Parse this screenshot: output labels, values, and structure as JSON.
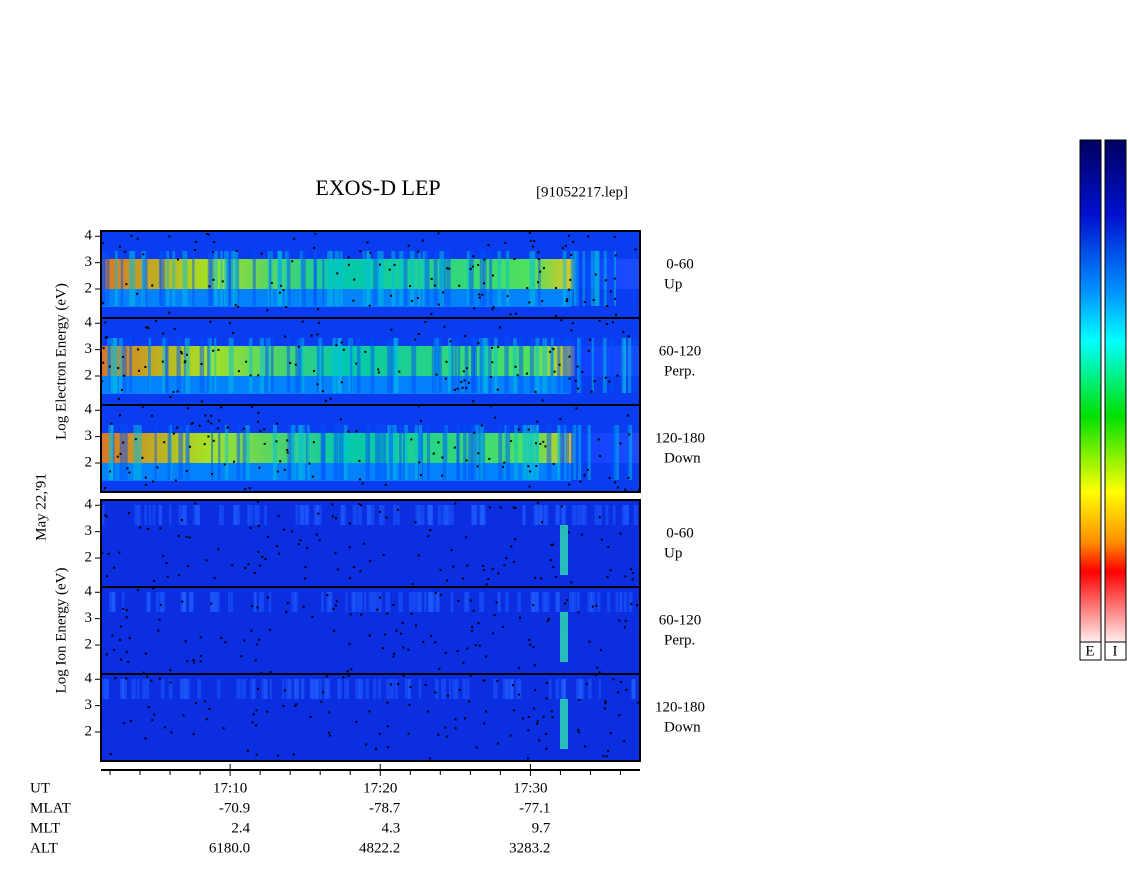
{
  "chart_data": {
    "type": "spectrogram",
    "title": "EXOS-D LEP",
    "file_label": "[91052217.lep]",
    "date_label": "May 22,'91",
    "groups": [
      {
        "ylabel": "Log Electron Energy (eV)",
        "panels": [
          {
            "label": [
              "0-60",
              "Up"
            ]
          },
          {
            "label": [
              "60-120",
              "Perp."
            ]
          },
          {
            "label": [
              "120-180",
              "Down"
            ]
          }
        ]
      },
      {
        "ylabel": "Log Ion Energy (eV)",
        "panels": [
          {
            "label": [
              "0-60",
              "Up"
            ]
          },
          {
            "label": [
              "60-120",
              "Perp."
            ]
          },
          {
            "label": [
              "120-180",
              "Down"
            ]
          }
        ]
      }
    ],
    "ylim": [
      0.9,
      4.2
    ],
    "yticks": [
      2,
      3,
      4
    ],
    "xlim": [
      1.4,
      37.3
    ],
    "xticks": [
      {
        "value": 10,
        "label": "17:10"
      },
      {
        "value": 20,
        "label": "17:20"
      },
      {
        "value": 30,
        "label": "17:30"
      }
    ],
    "xminor": [
      2,
      4,
      6,
      8,
      12,
      14,
      16,
      18,
      22,
      24,
      26,
      28,
      32,
      34,
      36
    ],
    "orbit_rows": [
      {
        "name": "UT"
      },
      {
        "name": "MLAT",
        "values": [
          "-70.9",
          "-78.7",
          "-77.1"
        ]
      },
      {
        "name": "MLT",
        "values": [
          "2.4",
          "4.3",
          "9.7"
        ]
      },
      {
        "name": "ALT",
        "values": [
          "6180.0",
          "4822.2",
          "3283.2"
        ]
      }
    ],
    "colorbar_labels": [
      "E",
      "I"
    ]
  }
}
